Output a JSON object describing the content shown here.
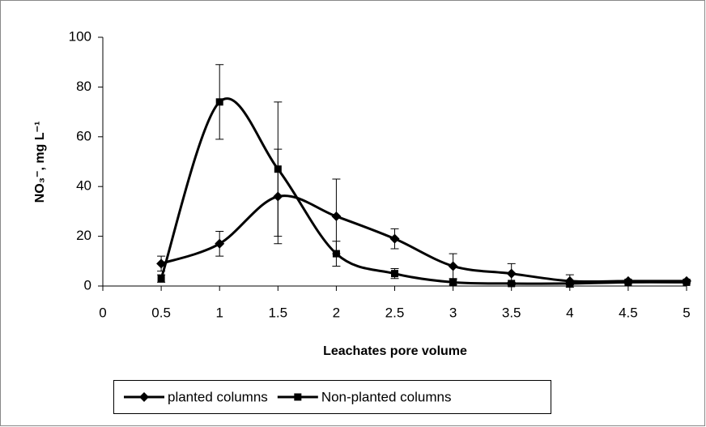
{
  "chart_data": {
    "type": "line",
    "x_label": "Leachates pore volume",
    "y_label": "NO₃⁻, mg L⁻¹",
    "x": [
      0.5,
      1,
      1.5,
      2,
      2.5,
      3,
      3.5,
      4,
      4.5,
      5
    ],
    "series": [
      {
        "name": "planted columns",
        "color": "#000000",
        "marker": "diamond",
        "values": [
          9,
          17,
          36,
          28,
          19,
          8,
          5,
          2,
          2,
          2
        ],
        "errors": [
          3,
          5,
          19,
          15,
          4,
          5,
          4,
          2.5,
          0.5,
          0.5
        ]
      },
      {
        "name": "Non-planted columns",
        "color": "#000000",
        "marker": "square",
        "values": [
          3,
          74,
          47,
          13,
          5,
          1.5,
          1,
          1,
          1.5,
          1.5
        ],
        "errors": [
          1.5,
          15,
          27,
          5,
          2,
          1,
          0.5,
          0.5,
          0.5,
          0.5
        ]
      }
    ],
    "xlim": [
      0,
      5
    ],
    "xticks": [
      0,
      0.5,
      1,
      1.5,
      2,
      2.5,
      3,
      3.5,
      4,
      4.5,
      5
    ],
    "ylim": [
      0,
      100
    ],
    "yticks": [
      0,
      20,
      40,
      60,
      80,
      100
    ],
    "grid": false,
    "legend": "bottom",
    "smooth": true
  }
}
